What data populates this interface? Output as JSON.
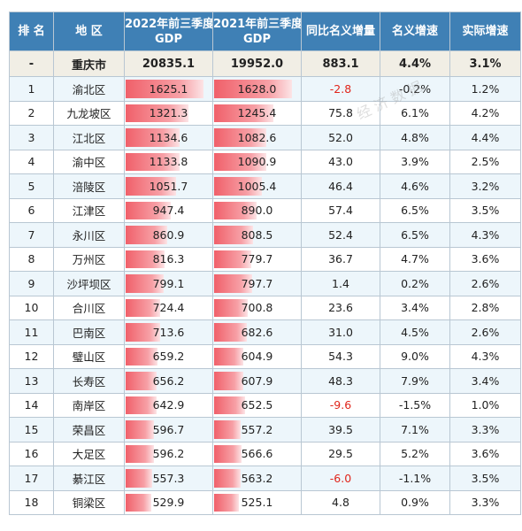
{
  "header": {
    "rank": "排 名",
    "region": "地  区",
    "gdp2022": [
      "2022年前三季度",
      "GDP"
    ],
    "gdp2021": [
      "2021年前三季度",
      "GDP"
    ],
    "nominal_increase": "同比名义增量",
    "nominal_growth": "名义增速",
    "real_growth": "实际增速"
  },
  "total": {
    "rank": "-",
    "region": "重庆市",
    "gdp2022": "20835.1",
    "gdp2021": "19952.0",
    "increase": "883.1",
    "nominal": "4.4%",
    "real": "3.1%"
  },
  "watermark": "经 济 数 据",
  "bar_max": 1628.0,
  "colors": {
    "header": "#3f80b5",
    "bar": "#f0606a",
    "negative": "#e0251b",
    "stripe": "#edf6fb"
  },
  "rows": [
    {
      "rank": "1",
      "region": "渝北区",
      "gdp2022": "1625.1",
      "gdp2021": "1628.0",
      "increase": "-2.8",
      "nominal": "-0.2%",
      "real": "1.2%"
    },
    {
      "rank": "2",
      "region": "九龙坡区",
      "gdp2022": "1321.3",
      "gdp2021": "1245.4",
      "increase": "75.8",
      "nominal": "6.1%",
      "real": "4.2%"
    },
    {
      "rank": "3",
      "region": "江北区",
      "gdp2022": "1134.6",
      "gdp2021": "1082.6",
      "increase": "52.0",
      "nominal": "4.8%",
      "real": "4.4%"
    },
    {
      "rank": "4",
      "region": "渝中区",
      "gdp2022": "1133.8",
      "gdp2021": "1090.9",
      "increase": "43.0",
      "nominal": "3.9%",
      "real": "2.5%"
    },
    {
      "rank": "5",
      "region": "涪陵区",
      "gdp2022": "1051.7",
      "gdp2021": "1005.4",
      "increase": "46.4",
      "nominal": "4.6%",
      "real": "3.2%"
    },
    {
      "rank": "6",
      "region": "江津区",
      "gdp2022": "947.4",
      "gdp2021": "890.0",
      "increase": "57.4",
      "nominal": "6.5%",
      "real": "3.5%"
    },
    {
      "rank": "7",
      "region": "永川区",
      "gdp2022": "860.9",
      "gdp2021": "808.5",
      "increase": "52.4",
      "nominal": "6.5%",
      "real": "4.3%"
    },
    {
      "rank": "8",
      "region": "万州区",
      "gdp2022": "816.3",
      "gdp2021": "779.7",
      "increase": "36.7",
      "nominal": "4.7%",
      "real": "3.6%"
    },
    {
      "rank": "9",
      "region": "沙坪坝区",
      "gdp2022": "799.1",
      "gdp2021": "797.7",
      "increase": "1.4",
      "nominal": "0.2%",
      "real": "2.6%"
    },
    {
      "rank": "10",
      "region": "合川区",
      "gdp2022": "724.4",
      "gdp2021": "700.8",
      "increase": "23.6",
      "nominal": "3.4%",
      "real": "2.8%"
    },
    {
      "rank": "11",
      "region": "巴南区",
      "gdp2022": "713.6",
      "gdp2021": "682.6",
      "increase": "31.0",
      "nominal": "4.5%",
      "real": "2.6%"
    },
    {
      "rank": "12",
      "region": "璧山区",
      "gdp2022": "659.2",
      "gdp2021": "604.9",
      "increase": "54.3",
      "nominal": "9.0%",
      "real": "4.3%"
    },
    {
      "rank": "13",
      "region": "长寿区",
      "gdp2022": "656.2",
      "gdp2021": "607.9",
      "increase": "48.3",
      "nominal": "7.9%",
      "real": "3.4%"
    },
    {
      "rank": "14",
      "region": "南岸区",
      "gdp2022": "642.9",
      "gdp2021": "652.5",
      "increase": "-9.6",
      "nominal": "-1.5%",
      "real": "1.0%"
    },
    {
      "rank": "15",
      "region": "荣昌区",
      "gdp2022": "596.7",
      "gdp2021": "557.2",
      "increase": "39.5",
      "nominal": "7.1%",
      "real": "3.3%"
    },
    {
      "rank": "16",
      "region": "大足区",
      "gdp2022": "596.2",
      "gdp2021": "566.6",
      "increase": "29.5",
      "nominal": "5.2%",
      "real": "3.6%"
    },
    {
      "rank": "17",
      "region": "綦江区",
      "gdp2022": "557.3",
      "gdp2021": "563.2",
      "increase": "-6.0",
      "nominal": "-1.1%",
      "real": "3.5%"
    },
    {
      "rank": "18",
      "region": "铜梁区",
      "gdp2022": "529.9",
      "gdp2021": "525.1",
      "increase": "4.8",
      "nominal": "0.9%",
      "real": "3.3%"
    }
  ]
}
